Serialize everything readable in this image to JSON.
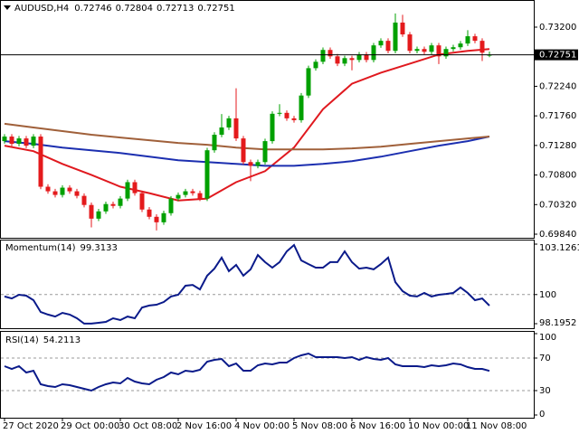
{
  "chart_data": [
    {
      "type": "candlestick",
      "title": "AUDUSD,H4",
      "up_color": "#00a000",
      "down_color": "#e41a1c",
      "xlim": [
        -0.625,
        73.125
      ],
      "ylim": [
        0.69796,
        0.73611
      ],
      "yticks": [
        {
          "value": 0.732,
          "label": "0.73200"
        },
        {
          "value": 0.7224,
          "label": "0.72240"
        },
        {
          "value": 0.7176,
          "label": "0.71760"
        },
        {
          "value": 0.7128,
          "label": "0.71280"
        },
        {
          "value": 0.708,
          "label": "0.70800"
        },
        {
          "value": 0.7032,
          "label": "0.70320"
        },
        {
          "value": 0.6984,
          "label": "0.69840"
        }
      ],
      "grid": false,
      "series": [
        {
          "open": [
            0.7135,
            0.71424,
            0.71306,
            0.71394,
            0.71276,
            0.71424,
            0.7061,
            0.70536,
            0.70477,
            0.70595,
            0.70536,
            0.70462,
            0.70314,
            0.70092,
            0.7021,
            0.70329,
            0.70299,
            0.70418,
            0.70684,
            0.70506,
            0.7024,
            0.70122,
            0.70033,
            0.70181,
            0.70418,
            0.70477,
            0.70536,
            0.70506,
            0.70418,
            0.71202,
            0.71454,
            0.71572,
            0.7172,
            0.71394,
            0.7101,
            0.7095,
            0.7101,
            0.7135,
            0.71794,
            0.71809,
            0.7172,
            0.7169,
            0.7209,
            0.72534,
            0.72638,
            0.7283,
            0.72726,
            0.72608,
            0.72697,
            0.72667,
            0.72756,
            0.72667,
            0.72904,
            0.72978,
            0.72815,
            0.73274,
            0.73082,
            0.72815,
            0.72845,
            0.728,
            0.72904,
            0.72726,
            0.72845,
            0.72874,
            0.72934,
            0.73052,
            0.72978,
            0.72746
          ],
          "high": [
            0.71464,
            0.71464,
            0.71434,
            0.71434,
            0.71464,
            0.71464,
            0.7065,
            0.70576,
            0.70635,
            0.70635,
            0.70576,
            0.70502,
            0.70354,
            0.7025,
            0.70369,
            0.70369,
            0.70458,
            0.70724,
            0.70724,
            0.70546,
            0.7028,
            0.70162,
            0.70221,
            0.70458,
            0.70517,
            0.70576,
            0.70576,
            0.70546,
            0.71242,
            0.71494,
            0.7179,
            0.7176,
            0.72208,
            0.71434,
            0.7105,
            0.7105,
            0.7139,
            0.71834,
            0.7195,
            0.71849,
            0.7176,
            0.7213,
            0.72574,
            0.72678,
            0.7287,
            0.7287,
            0.72766,
            0.72737,
            0.72737,
            0.72796,
            0.72796,
            0.72944,
            0.73018,
            0.73018,
            0.73422,
            0.734,
            0.73122,
            0.72885,
            0.72885,
            0.72944,
            0.72944,
            0.72885,
            0.72914,
            0.72974,
            0.7315,
            0.73092,
            0.73018,
            0.72804
          ],
          "low": [
            0.7131,
            0.71266,
            0.71266,
            0.71236,
            0.71236,
            0.7057,
            0.70496,
            0.70437,
            0.70437,
            0.70496,
            0.70422,
            0.70274,
            0.6995,
            0.70052,
            0.7017,
            0.70259,
            0.70259,
            0.70378,
            0.70466,
            0.702,
            0.70082,
            0.699,
            0.69993,
            0.70141,
            0.70378,
            0.70437,
            0.70466,
            0.70378,
            0.70378,
            0.71162,
            0.71414,
            0.71532,
            0.71354,
            0.7097,
            0.707,
            0.7091,
            0.7097,
            0.7131,
            0.71754,
            0.7168,
            0.7165,
            0.7165,
            0.7205,
            0.72494,
            0.72598,
            0.72686,
            0.72568,
            0.72568,
            0.725,
            0.72627,
            0.72627,
            0.72627,
            0.72864,
            0.72775,
            0.72775,
            0.73042,
            0.72775,
            0.72775,
            0.7276,
            0.7276,
            0.726,
            0.72686,
            0.72805,
            0.72834,
            0.72894,
            0.72938,
            0.7265,
            0.72713
          ],
          "close": [
            0.71424,
            0.71306,
            0.71394,
            0.71276,
            0.71424,
            0.7061,
            0.70536,
            0.70477,
            0.70595,
            0.70536,
            0.70462,
            0.70314,
            0.70092,
            0.7021,
            0.70329,
            0.70299,
            0.70418,
            0.70684,
            0.70506,
            0.7024,
            0.70122,
            0.70033,
            0.70181,
            0.70418,
            0.70477,
            0.70536,
            0.70506,
            0.70418,
            0.71202,
            0.71454,
            0.71572,
            0.7172,
            0.71394,
            0.7101,
            0.7095,
            0.7101,
            0.7135,
            0.71794,
            0.71809,
            0.7172,
            0.7169,
            0.7209,
            0.72534,
            0.72638,
            0.7283,
            0.72726,
            0.72608,
            0.72697,
            0.72667,
            0.72756,
            0.72667,
            0.72904,
            0.72978,
            0.72815,
            0.73274,
            0.73082,
            0.72815,
            0.72845,
            0.728,
            0.72904,
            0.72726,
            0.72845,
            0.72874,
            0.72934,
            0.73052,
            0.72978,
            0.72786,
            0.72751
          ]
        }
      ],
      "lines": [
        {
          "color": "#e0191f",
          "x": [
            0,
            4,
            8,
            12,
            16,
            20,
            24,
            28,
            32,
            36,
            40,
            44,
            48,
            52,
            56,
            60,
            64,
            67
          ],
          "values": [
            0.71276,
            0.71187,
            0.7098,
            0.70802,
            0.7061,
            0.70506,
            0.70388,
            0.70418,
            0.70684,
            0.70862,
            0.71246,
            0.71868,
            0.72282,
            0.7246,
            0.72608,
            0.72756,
            0.72815,
            0.72845
          ]
        },
        {
          "color": "#1c2fb0",
          "x": [
            0,
            4,
            8,
            12,
            16,
            20,
            24,
            28,
            32,
            36,
            40,
            44,
            48,
            52,
            56,
            60,
            64,
            67
          ],
          "values": [
            0.7135,
            0.71306,
            0.71246,
            0.71202,
            0.71158,
            0.71098,
            0.71039,
            0.7101,
            0.7098,
            0.7095,
            0.7095,
            0.7098,
            0.71024,
            0.71098,
            0.71187,
            0.71276,
            0.7135,
            0.71424
          ]
        },
        {
          "color": "#a0603a",
          "x": [
            0,
            4,
            8,
            12,
            16,
            20,
            24,
            28,
            32,
            36,
            40,
            44,
            48,
            52,
            56,
            60,
            64,
            67
          ],
          "values": [
            0.71631,
            0.71572,
            0.71513,
            0.71454,
            0.71409,
            0.71365,
            0.7132,
            0.71291,
            0.71246,
            0.71217,
            0.71217,
            0.71217,
            0.71232,
            0.71261,
            0.71306,
            0.7135,
            0.71394,
            0.71424
          ]
        }
      ]
    },
    {
      "type": "line",
      "name": "Momentum(14)",
      "color": "#0a1a8a",
      "grid": "levels",
      "xlim": [
        -0.625,
        73.125
      ],
      "ylim": [
        98.1952,
        103.1261
      ],
      "yticks": [
        103.1261,
        100,
        98.1952
      ],
      "values": [
        99.88,
        99.76,
        99.99,
        99.93,
        99.65,
        98.92,
        98.76,
        98.64,
        98.87,
        98.76,
        98.53,
        98.2,
        98.2,
        98.25,
        98.31,
        98.53,
        98.42,
        98.64,
        98.53,
        99.2,
        99.32,
        99.37,
        99.54,
        99.88,
        99.99,
        100.55,
        100.6,
        100.32,
        101.17,
        101.61,
        102.29,
        101.45,
        101.84,
        101.17,
        101.56,
        102.45,
        102.01,
        101.67,
        102.01,
        102.68,
        103.07,
        102.12,
        101.89,
        101.67,
        101.67,
        102.01,
        102.01,
        102.68,
        102.01,
        101.61,
        101.67,
        101.56,
        101.89,
        102.29,
        100.77,
        100.21,
        99.93,
        99.88,
        100.1,
        99.88,
        99.99,
        100.04,
        100.1,
        100.44,
        100.1,
        99.65,
        99.76,
        99.3133
      ]
    },
    {
      "type": "line",
      "name": "RSI(14)",
      "color": "#0a1a8a",
      "grid": "levels",
      "xlim": [
        -0.625,
        73.125
      ],
      "ylim": [
        0,
        100
      ],
      "yticks": [
        100,
        70,
        30,
        0
      ],
      "values": [
        60,
        56.7,
        60,
        52.2,
        54.4,
        37.8,
        35.6,
        34.4,
        37.8,
        36.7,
        34.4,
        32.2,
        30,
        34.4,
        37.8,
        40,
        38.9,
        45.6,
        41.1,
        38.9,
        37.8,
        43.3,
        46.7,
        52.2,
        50,
        54.4,
        53.3,
        55.6,
        65.6,
        67.8,
        68.9,
        60,
        63.3,
        54.4,
        54.4,
        61.1,
        63.3,
        62.2,
        64.4,
        64.4,
        70,
        73.3,
        75.6,
        71.1,
        71.1,
        71.1,
        71.1,
        70,
        71.1,
        67.8,
        71.1,
        68.9,
        67.8,
        70,
        62.2,
        60,
        60,
        60,
        58.9,
        61.1,
        60,
        61.1,
        63.3,
        62.2,
        58.9,
        56.7,
        56.7,
        54.2113
      ],
      "xticks": [
        {
          "value": 0,
          "label": "27 Oct 2020"
        },
        {
          "value": 8,
          "label": "29 Oct 00:00"
        },
        {
          "value": 16,
          "label": "30 Oct 08:00"
        },
        {
          "value": 24,
          "label": "2 Nov 16:00"
        },
        {
          "value": 32,
          "label": "4 Nov 00:00"
        },
        {
          "value": 40,
          "label": "5 Nov 08:00"
        },
        {
          "value": 48,
          "label": "6 Nov 16:00"
        },
        {
          "value": 56,
          "label": "10 Nov 00:00"
        },
        {
          "value": 64,
          "label": "11 Nov 08:00"
        }
      ]
    }
  ]
}
